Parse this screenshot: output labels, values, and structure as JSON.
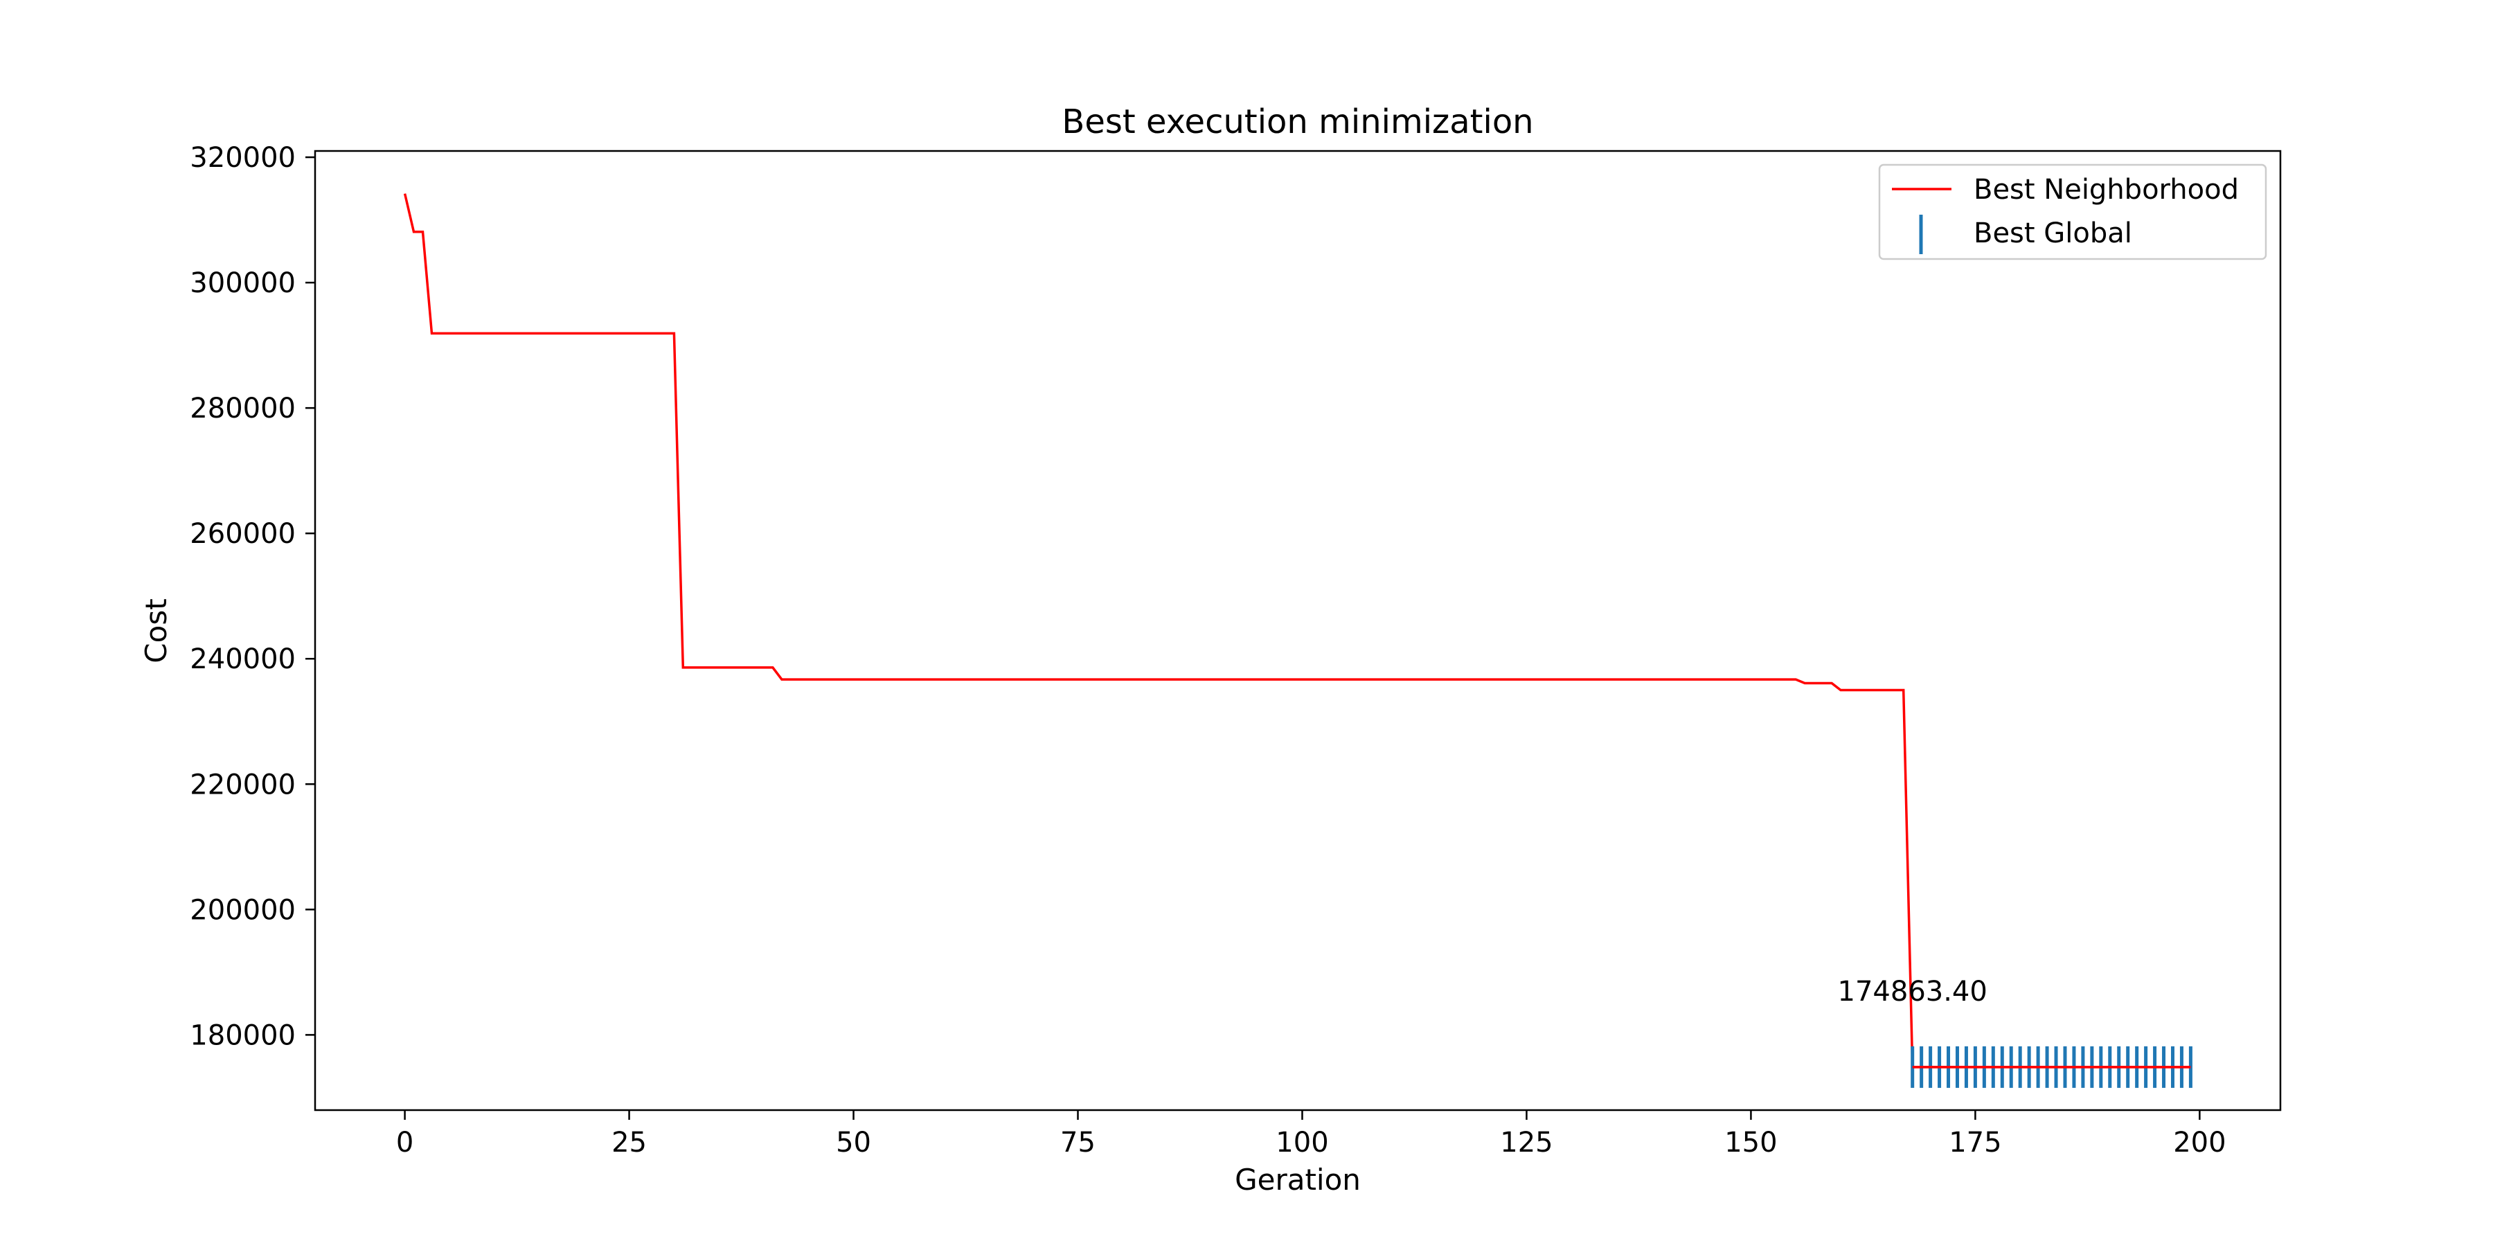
{
  "chart_data": {
    "type": "line",
    "title": "Best execution minimization",
    "xlabel": "Geration",
    "ylabel": "Cost",
    "xlim": [
      -10,
      209
    ],
    "ylim": [
      168000,
      321000
    ],
    "xticks": [
      0,
      25,
      50,
      75,
      100,
      125,
      150,
      175,
      200
    ],
    "xtick_labels": [
      "0",
      "25",
      "50",
      "75",
      "100",
      "125",
      "150",
      "175",
      "200"
    ],
    "yticks": [
      180000,
      200000,
      220000,
      240000,
      260000,
      280000,
      300000,
      320000
    ],
    "ytick_labels": [
      "180000",
      "200000",
      "220000",
      "240000",
      "260000",
      "280000",
      "300000",
      "320000"
    ],
    "grid": false,
    "legend_position": "top-right",
    "series": [
      {
        "name": "Best Neighborhood",
        "kind": "line",
        "color": "#ff0000",
        "x": [
          0,
          1,
          2,
          3,
          30,
          31,
          41,
          42,
          155,
          156,
          159,
          160,
          167,
          168,
          199
        ],
        "y": [
          314200,
          308100,
          308100,
          291900,
          291900,
          238600,
          238600,
          236700,
          236700,
          236100,
          236100,
          235000,
          235000,
          174863.4,
          174863.4
        ]
      },
      {
        "name": "Best Global",
        "kind": "marker",
        "marker": "|",
        "color": "#1f77b4",
        "x": [
          168,
          169,
          170,
          171,
          172,
          173,
          174,
          175,
          176,
          177,
          178,
          179,
          180,
          181,
          182,
          183,
          184,
          185,
          186,
          187,
          188,
          189,
          190,
          191,
          192,
          193,
          194,
          195,
          196,
          197,
          198,
          199
        ],
        "y": [
          174863.4,
          174863.4,
          174863.4,
          174863.4,
          174863.4,
          174863.4,
          174863.4,
          174863.4,
          174863.4,
          174863.4,
          174863.4,
          174863.4,
          174863.4,
          174863.4,
          174863.4,
          174863.4,
          174863.4,
          174863.4,
          174863.4,
          174863.4,
          174863.4,
          174863.4,
          174863.4,
          174863.4,
          174863.4,
          174863.4,
          174863.4,
          174863.4,
          174863.4,
          174863.4,
          174863.4,
          174863.4
        ]
      }
    ],
    "annotations": [
      {
        "text": "174863.40",
        "x": 168,
        "y": 187000
      }
    ]
  }
}
